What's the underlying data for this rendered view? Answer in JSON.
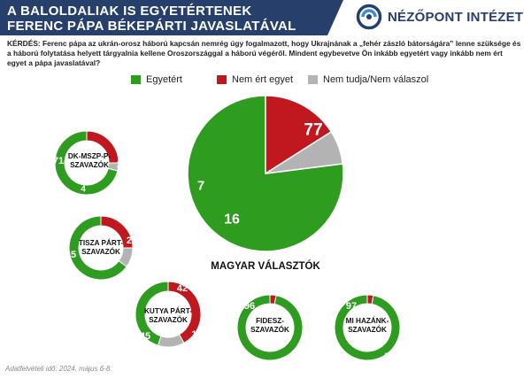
{
  "header": {
    "title_line1": "A BALOLDALIAK IS EGYETÉRTENEK",
    "title_line2": "FERENC PÁPA BÉKEPÁRTI JAVASLATÁVAL",
    "logo_text": "NÉZŐPONT INTÉZET"
  },
  "question": "KÉRDÉS: Ferenc pápa az ukrán-orosz háború kapcsán nemrég úgy fogalmazott, hogy Ukrajnának a „fehér zászló bátorságára” lenne szüksége és a háború folytatása helyett tárgyalnia kellene Oroszországgal a háború végéről. Mindent egybevetve Ön inkább egyetért vagy inkább nem ért egyet a pápa javaslatával?",
  "footer": "Adatfelvételi idő: 2024. május 6-8.",
  "colors": {
    "agree": "#2e9c1f",
    "disagree": "#c0181e",
    "dont_know": "#b3b3b3",
    "header": "#27406b"
  },
  "chart_data": {
    "type": "pie",
    "legend": [
      "Egyetért",
      "Nem ért egyet",
      "Nem tudja/Nem válaszol"
    ],
    "legend_placement": "top",
    "charts": [
      {
        "label": "MAGYAR VÁLASZTÓK",
        "style": "pie",
        "values": [
          77,
          16,
          7
        ]
      },
      {
        "label": "DK-MSZP-P-\nSZAVAZÓK",
        "style": "donut",
        "values": [
          71,
          25,
          4
        ]
      },
      {
        "label": "TISZA PÁRT-\nSZAVAZÓK",
        "style": "donut",
        "values": [
          65,
          25,
          10
        ]
      },
      {
        "label": "KUTYA PÁRT-\nSZAVAZÓK",
        "style": "donut",
        "values": [
          45,
          42,
          13
        ]
      },
      {
        "label": "FIDESZ-\nSZAVAZÓK",
        "style": "donut",
        "values": [
          96,
          3,
          0
        ]
      },
      {
        "label": "MI HAZÁNK-\nSZAVAZÓK",
        "style": "donut",
        "values": [
          97,
          3,
          0
        ]
      }
    ]
  }
}
